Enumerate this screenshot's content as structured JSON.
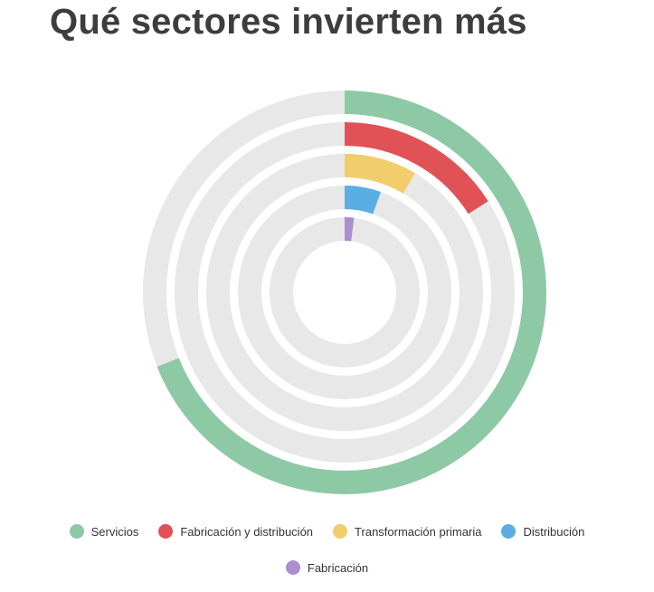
{
  "title": "Qué sectores invierten más",
  "chart_data": {
    "type": "radial-bar",
    "max": 100,
    "track_color": "#e8e8e8",
    "series": [
      {
        "name": "Servicios",
        "value": 69,
        "color": "#8ec9a6"
      },
      {
        "name": "Fabricación y distribución",
        "value": 16,
        "color": "#e05256"
      },
      {
        "name": "Transformación primaria",
        "value": 8.5,
        "color": "#f2cd6b"
      },
      {
        "name": "Distribución",
        "value": 5.5,
        "color": "#5aaee3"
      },
      {
        "name": "Fabricación",
        "value": 2,
        "color": "#ac8dd0"
      }
    ],
    "legend_position": "bottom"
  }
}
